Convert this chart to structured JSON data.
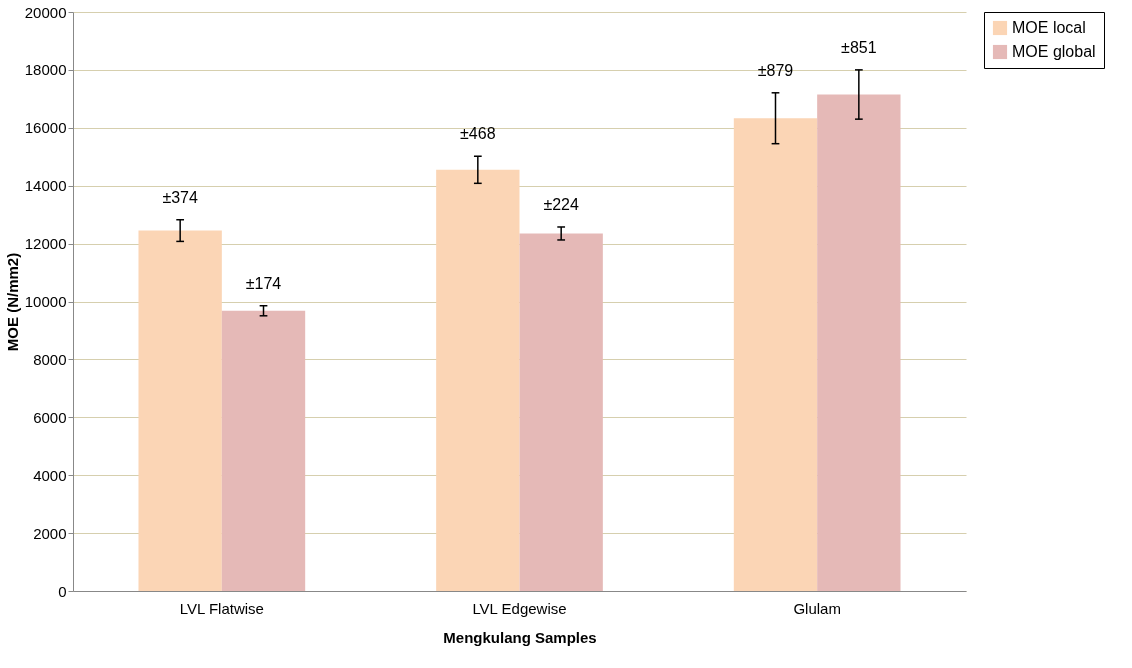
{
  "chart_data": {
    "type": "bar",
    "xlabel": "Mengkulang Samples",
    "ylabel": "MOE (N/mm2)",
    "categories": [
      "LVL Flatwise",
      "LVL Edgewise",
      "Glulam"
    ],
    "series": [
      {
        "name": "MOE local",
        "color": "#fbd5b5",
        "values": [
          12450,
          14550,
          16330
        ],
        "errors": [
          374,
          468,
          879
        ]
      },
      {
        "name": "MOE global",
        "color": "#e5b9b7",
        "values": [
          9680,
          12350,
          17150
        ],
        "errors": [
          174,
          224,
          851
        ]
      }
    ],
    "annotations": [
      "±374",
      "±174",
      "±468",
      "±224",
      "±879",
      "±851"
    ],
    "ylim": [
      0,
      20000
    ],
    "yticks": [
      0,
      2000,
      4000,
      6000,
      8000,
      10000,
      12000,
      14000,
      16000,
      18000,
      20000
    ],
    "grid": "y",
    "legend": "right"
  }
}
